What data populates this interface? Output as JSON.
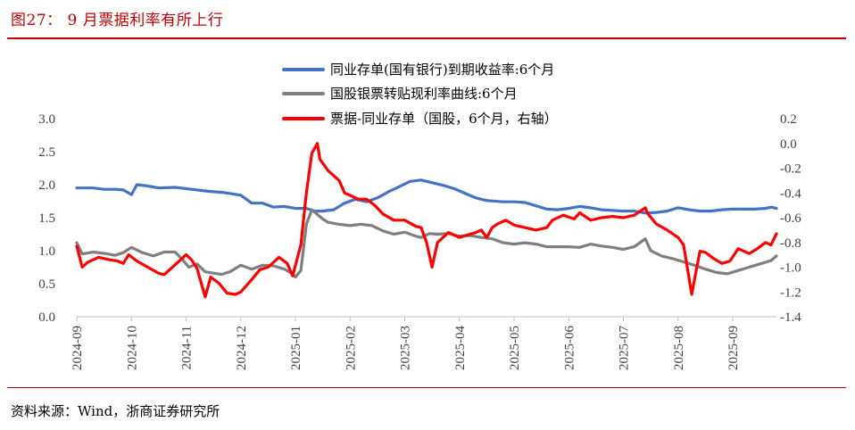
{
  "figure": {
    "title": "图27：  9 月票据利率有所上行",
    "source": "资料来源：Wind，浙商证券研究所"
  },
  "colors": {
    "accent": "#c00000",
    "series_blue": "#4472c4",
    "series_gray": "#7f7f7f",
    "series_red": "#ff0000",
    "axis": "#404040"
  },
  "chart_data": {
    "type": "line",
    "title": "",
    "x_labels": [
      "2024-09",
      "2024-10",
      "2024-11",
      "2024-12",
      "2025-01",
      "2025-02",
      "2025-03",
      "2025-04",
      "2025-05",
      "2025-06",
      "2025-07",
      "2025-08",
      "2025-09"
    ],
    "x_range": [
      0,
      12.8
    ],
    "y_left": {
      "min": 0.0,
      "max": 3.0,
      "ticks": [
        "0.0",
        "0.5",
        "1.0",
        "1.5",
        "2.0",
        "2.5",
        "3.0"
      ]
    },
    "y_right": {
      "min": -1.4,
      "max": 0.2,
      "ticks": [
        "0.2",
        "0.0",
        "-0.2",
        "-0.4",
        "-0.6",
        "-0.8",
        "-1.0",
        "-1.2",
        "-1.4"
      ]
    },
    "legend": [
      {
        "name": "同业存单(国有银行)到期收益率:6个月",
        "axis": "left"
      },
      {
        "name": "国股银票转贴现利率曲线:6个月",
        "axis": "left"
      },
      {
        "name": "票据-同业存单（国股，6个月，右轴）",
        "axis": "right"
      }
    ],
    "series": [
      {
        "name": "同业存单(国有银行)到期收益率:6个月",
        "axis": "left",
        "color": "#4472c4",
        "points": [
          [
            0,
            1.95
          ],
          [
            0.3,
            1.95
          ],
          [
            0.5,
            1.93
          ],
          [
            0.7,
            1.93
          ],
          [
            0.85,
            1.92
          ],
          [
            1.0,
            1.85
          ],
          [
            1.1,
            2.0
          ],
          [
            1.3,
            1.98
          ],
          [
            1.5,
            1.95
          ],
          [
            1.8,
            1.96
          ],
          [
            2.1,
            1.93
          ],
          [
            2.4,
            1.9
          ],
          [
            2.7,
            1.88
          ],
          [
            3.0,
            1.84
          ],
          [
            3.2,
            1.72
          ],
          [
            3.4,
            1.72
          ],
          [
            3.6,
            1.66
          ],
          [
            3.8,
            1.67
          ],
          [
            4.0,
            1.64
          ],
          [
            4.2,
            1.64
          ],
          [
            4.35,
            1.6
          ],
          [
            4.5,
            1.6
          ],
          [
            4.7,
            1.62
          ],
          [
            4.9,
            1.72
          ],
          [
            5.1,
            1.78
          ],
          [
            5.3,
            1.74
          ],
          [
            5.5,
            1.8
          ],
          [
            5.7,
            1.89
          ],
          [
            5.9,
            1.97
          ],
          [
            6.1,
            2.05
          ],
          [
            6.3,
            2.07
          ],
          [
            6.5,
            2.03
          ],
          [
            6.7,
            1.99
          ],
          [
            6.9,
            1.94
          ],
          [
            7.1,
            1.87
          ],
          [
            7.3,
            1.8
          ],
          [
            7.5,
            1.76
          ],
          [
            7.8,
            1.74
          ],
          [
            8.0,
            1.74
          ],
          [
            8.2,
            1.73
          ],
          [
            8.4,
            1.68
          ],
          [
            8.6,
            1.63
          ],
          [
            8.8,
            1.62
          ],
          [
            9.0,
            1.64
          ],
          [
            9.2,
            1.67
          ],
          [
            9.4,
            1.65
          ],
          [
            9.6,
            1.62
          ],
          [
            9.8,
            1.61
          ],
          [
            10.0,
            1.6
          ],
          [
            10.2,
            1.6
          ],
          [
            10.4,
            1.57
          ],
          [
            10.6,
            1.58
          ],
          [
            10.8,
            1.6
          ],
          [
            11.0,
            1.65
          ],
          [
            11.2,
            1.62
          ],
          [
            11.4,
            1.6
          ],
          [
            11.6,
            1.6
          ],
          [
            11.8,
            1.62
          ],
          [
            12.0,
            1.63
          ],
          [
            12.2,
            1.63
          ],
          [
            12.4,
            1.63
          ],
          [
            12.6,
            1.64
          ],
          [
            12.7,
            1.66
          ],
          [
            12.8,
            1.64
          ]
        ]
      },
      {
        "name": "国股银票转贴现利率曲线:6个月",
        "axis": "left",
        "color": "#7f7f7f",
        "points": [
          [
            0,
            1.12
          ],
          [
            0.1,
            0.95
          ],
          [
            0.3,
            0.98
          ],
          [
            0.5,
            0.96
          ],
          [
            0.7,
            0.93
          ],
          [
            0.85,
            0.97
          ],
          [
            1.0,
            1.05
          ],
          [
            1.2,
            0.97
          ],
          [
            1.4,
            0.92
          ],
          [
            1.6,
            0.98
          ],
          [
            1.8,
            0.98
          ],
          [
            1.95,
            0.85
          ],
          [
            2.05,
            0.75
          ],
          [
            2.2,
            0.8
          ],
          [
            2.35,
            0.68
          ],
          [
            2.5,
            0.66
          ],
          [
            2.65,
            0.64
          ],
          [
            2.8,
            0.68
          ],
          [
            3.0,
            0.78
          ],
          [
            3.2,
            0.72
          ],
          [
            3.4,
            0.78
          ],
          [
            3.6,
            0.77
          ],
          [
            3.8,
            0.72
          ],
          [
            3.95,
            0.65
          ],
          [
            4.0,
            0.6
          ],
          [
            4.1,
            0.7
          ],
          [
            4.2,
            1.4
          ],
          [
            4.3,
            1.62
          ],
          [
            4.4,
            1.55
          ],
          [
            4.5,
            1.48
          ],
          [
            4.6,
            1.43
          ],
          [
            4.8,
            1.4
          ],
          [
            5.0,
            1.38
          ],
          [
            5.2,
            1.4
          ],
          [
            5.4,
            1.38
          ],
          [
            5.6,
            1.3
          ],
          [
            5.8,
            1.25
          ],
          [
            6.0,
            1.28
          ],
          [
            6.2,
            1.22
          ],
          [
            6.3,
            1.2
          ],
          [
            6.45,
            1.26
          ],
          [
            6.6,
            1.25
          ],
          [
            6.8,
            1.26
          ],
          [
            7.0,
            1.22
          ],
          [
            7.2,
            1.23
          ],
          [
            7.4,
            1.2
          ],
          [
            7.6,
            1.18
          ],
          [
            7.8,
            1.12
          ],
          [
            8.0,
            1.1
          ],
          [
            8.2,
            1.12
          ],
          [
            8.4,
            1.1
          ],
          [
            8.6,
            1.06
          ],
          [
            8.8,
            1.06
          ],
          [
            9.0,
            1.06
          ],
          [
            9.2,
            1.05
          ],
          [
            9.4,
            1.1
          ],
          [
            9.6,
            1.07
          ],
          [
            9.8,
            1.05
          ],
          [
            10.0,
            1.02
          ],
          [
            10.2,
            1.06
          ],
          [
            10.4,
            1.18
          ],
          [
            10.5,
            1.0
          ],
          [
            10.7,
            0.92
          ],
          [
            10.9,
            0.88
          ],
          [
            11.1,
            0.83
          ],
          [
            11.3,
            0.78
          ],
          [
            11.5,
            0.72
          ],
          [
            11.7,
            0.67
          ],
          [
            11.9,
            0.65
          ],
          [
            12.1,
            0.7
          ],
          [
            12.3,
            0.75
          ],
          [
            12.5,
            0.8
          ],
          [
            12.7,
            0.85
          ],
          [
            12.8,
            0.92
          ]
        ]
      },
      {
        "name": "票据-同业存单（国股，6个月，右轴）",
        "axis": "right",
        "color": "#ff0000",
        "points": [
          [
            0,
            -0.83
          ],
          [
            0.1,
            -1.0
          ],
          [
            0.2,
            -0.96
          ],
          [
            0.4,
            -0.92
          ],
          [
            0.6,
            -0.94
          ],
          [
            0.75,
            -0.95
          ],
          [
            0.85,
            -0.97
          ],
          [
            0.95,
            -0.9
          ],
          [
            1.1,
            -0.95
          ],
          [
            1.3,
            -1.0
          ],
          [
            1.5,
            -1.05
          ],
          [
            1.6,
            -1.06
          ],
          [
            1.8,
            -0.98
          ],
          [
            2.0,
            -0.9
          ],
          [
            2.1,
            -0.94
          ],
          [
            2.2,
            -1.01
          ],
          [
            2.35,
            -1.24
          ],
          [
            2.45,
            -1.08
          ],
          [
            2.6,
            -1.13
          ],
          [
            2.75,
            -1.21
          ],
          [
            2.9,
            -1.22
          ],
          [
            3.0,
            -1.2
          ],
          [
            3.2,
            -1.1
          ],
          [
            3.35,
            -1.02
          ],
          [
            3.5,
            -1.0
          ],
          [
            3.7,
            -0.92
          ],
          [
            3.85,
            -0.97
          ],
          [
            3.95,
            -1.07
          ],
          [
            4.1,
            -0.82
          ],
          [
            4.2,
            -0.4
          ],
          [
            4.3,
            -0.08
          ],
          [
            4.4,
            0.0
          ],
          [
            4.45,
            -0.13
          ],
          [
            4.6,
            -0.22
          ],
          [
            4.8,
            -0.3
          ],
          [
            4.9,
            -0.4
          ],
          [
            5.0,
            -0.42
          ],
          [
            5.15,
            -0.45
          ],
          [
            5.3,
            -0.45
          ],
          [
            5.45,
            -0.5
          ],
          [
            5.6,
            -0.57
          ],
          [
            5.8,
            -0.62
          ],
          [
            6.0,
            -0.62
          ],
          [
            6.2,
            -0.67
          ],
          [
            6.3,
            -0.68
          ],
          [
            6.4,
            -0.8
          ],
          [
            6.5,
            -1.0
          ],
          [
            6.6,
            -0.8
          ],
          [
            6.8,
            -0.72
          ],
          [
            7.0,
            -0.76
          ],
          [
            7.15,
            -0.74
          ],
          [
            7.3,
            -0.72
          ],
          [
            7.4,
            -0.7
          ],
          [
            7.5,
            -0.76
          ],
          [
            7.6,
            -0.68
          ],
          [
            7.7,
            -0.65
          ],
          [
            7.85,
            -0.62
          ],
          [
            8.0,
            -0.66
          ],
          [
            8.2,
            -0.68
          ],
          [
            8.4,
            -0.7
          ],
          [
            8.6,
            -0.68
          ],
          [
            8.7,
            -0.62
          ],
          [
            8.9,
            -0.58
          ],
          [
            9.1,
            -0.61
          ],
          [
            9.2,
            -0.56
          ],
          [
            9.4,
            -0.62
          ],
          [
            9.6,
            -0.6
          ],
          [
            9.8,
            -0.59
          ],
          [
            10.0,
            -0.6
          ],
          [
            10.2,
            -0.58
          ],
          [
            10.3,
            -0.55
          ],
          [
            10.4,
            -0.52
          ],
          [
            10.45,
            -0.57
          ],
          [
            10.6,
            -0.65
          ],
          [
            10.8,
            -0.7
          ],
          [
            11.0,
            -0.76
          ],
          [
            11.1,
            -0.82
          ],
          [
            11.25,
            -1.22
          ],
          [
            11.3,
            -1.1
          ],
          [
            11.4,
            -0.87
          ],
          [
            11.5,
            -0.88
          ],
          [
            11.65,
            -0.93
          ],
          [
            11.8,
            -0.97
          ],
          [
            11.95,
            -0.95
          ],
          [
            12.1,
            -0.85
          ],
          [
            12.3,
            -0.89
          ],
          [
            12.45,
            -0.85
          ],
          [
            12.6,
            -0.8
          ],
          [
            12.7,
            -0.82
          ],
          [
            12.8,
            -0.73
          ]
        ]
      }
    ]
  }
}
